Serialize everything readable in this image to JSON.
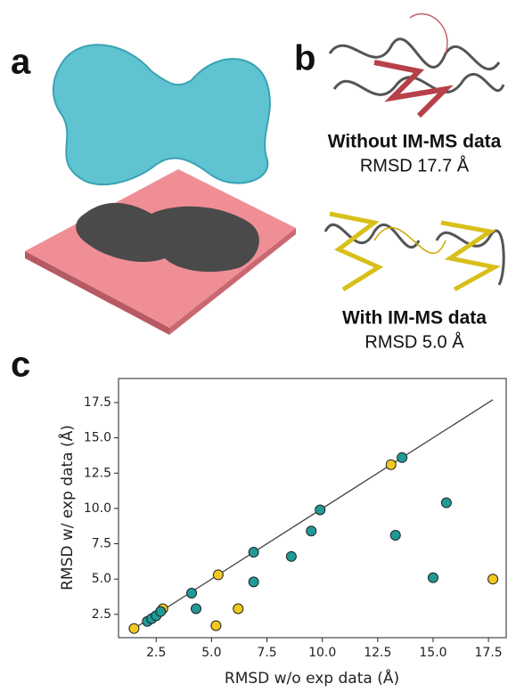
{
  "panels": {
    "a": "a",
    "b": "b",
    "c": "c",
    "without_title": "Without IM-MS data",
    "without_rmsd": "RMSD 17.7 Å",
    "with_title": "With IM-MS data",
    "with_rmsd": "RMSD 5.0 Å"
  },
  "chart_data": {
    "type": "scatter",
    "x_label": "RMSD w/o exp data (Å)",
    "y_label": "RMSD w/  exp data (Å)",
    "xlim": [
      0.8,
      18.3
    ],
    "ylim": [
      0.85,
      19.2
    ],
    "xticks": [
      2.5,
      {
        "value": 5,
        "label": "5.0"
      },
      7.5,
      {
        "value": 10,
        "label": "10.0"
      },
      12.5,
      {
        "value": 15,
        "label": "15.0"
      },
      17.5
    ],
    "yticks": [
      2.5,
      {
        "value": 5,
        "label": "5.0"
      },
      7.5,
      {
        "value": 10,
        "label": "10.0"
      },
      12.5,
      {
        "value": 15,
        "label": "15.0"
      },
      17.5
    ],
    "reference_line": {
      "color": "#444444",
      "x": [
        1.5,
        17.7
      ],
      "values": [
        1.5,
        17.7
      ]
    },
    "series": [
      {
        "color": "#f2c91e",
        "x": [
          1.5,
          2.8,
          5.3,
          5.2,
          6.2,
          13.1,
          17.7
        ],
        "values": [
          1.5,
          2.9,
          5.3,
          1.7,
          2.9,
          13.1,
          5.0
        ]
      },
      {
        "color": "#1f9a96",
        "x": [
          2.1,
          2.3,
          2.5,
          2.7,
          4.1,
          4.3,
          6.9,
          6.9,
          8.6,
          9.5,
          9.9,
          13.3,
          13.6,
          15.0,
          15.6
        ],
        "values": [
          2.0,
          2.2,
          2.4,
          2.7,
          4.0,
          2.9,
          4.8,
          6.9,
          6.6,
          8.4,
          9.9,
          8.1,
          13.6,
          5.1,
          10.4
        ]
      }
    ]
  }
}
